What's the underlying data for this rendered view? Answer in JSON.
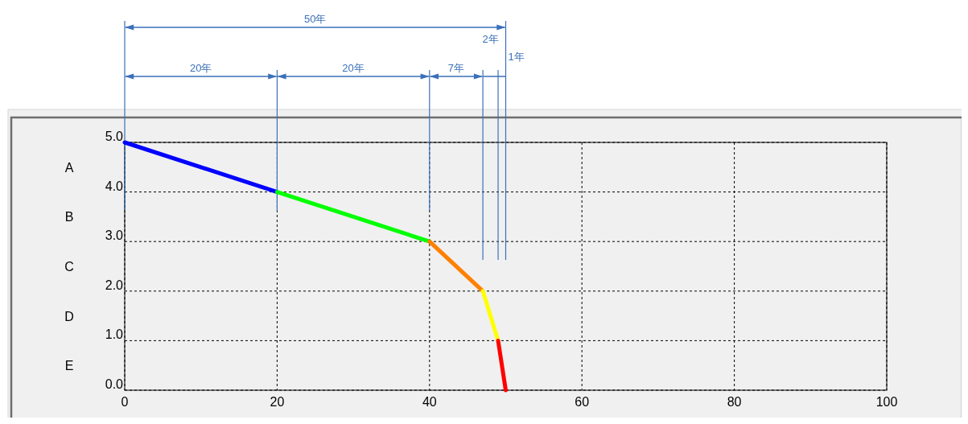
{
  "chart_data": {
    "type": "line",
    "series": [
      {
        "color": "#0000ff",
        "x": [
          0,
          20
        ],
        "values": [
          5,
          4
        ]
      },
      {
        "color": "#00ff00",
        "x": [
          20,
          40
        ],
        "values": [
          4,
          3
        ]
      },
      {
        "color": "#ff8000",
        "x": [
          40,
          47
        ],
        "values": [
          3,
          2
        ]
      },
      {
        "color": "#ffff00",
        "x": [
          47,
          49
        ],
        "values": [
          2,
          1
        ]
      },
      {
        "color": "#ff0000",
        "x": [
          49,
          50
        ],
        "values": [
          1,
          0
        ]
      }
    ],
    "xlim": [
      0,
      100
    ],
    "xticks": [
      0,
      20,
      40,
      60,
      80,
      100
    ],
    "ylim": [
      0,
      5
    ],
    "yticks": [
      {
        "value": 0,
        "label": "0.0"
      },
      {
        "value": 1,
        "label": "1.0"
      },
      {
        "value": 2,
        "label": "2.0"
      },
      {
        "value": 3,
        "label": "3.0"
      },
      {
        "value": 4,
        "label": "4.0"
      },
      {
        "value": 5,
        "label": "5.0"
      }
    ],
    "grid": true,
    "marker": "none",
    "line_style": "solid",
    "ref_lines": [
      {
        "axis": "x",
        "value": 0,
        "color": "#3a70b8"
      },
      {
        "axis": "x",
        "value": 20,
        "color": "#3a70b8"
      },
      {
        "axis": "x",
        "value": 40,
        "color": "#3a70b8"
      },
      {
        "axis": "x",
        "value": 47,
        "color": "#3a70b8"
      },
      {
        "axis": "x",
        "value": 49,
        "color": "#3a70b8"
      },
      {
        "axis": "x",
        "value": 50,
        "color": "#3a70b8"
      }
    ],
    "annotations": [
      "A",
      "B",
      "C",
      "D",
      "E",
      "50年",
      "20年",
      "20年",
      "7年",
      "2年",
      "1年"
    ]
  }
}
